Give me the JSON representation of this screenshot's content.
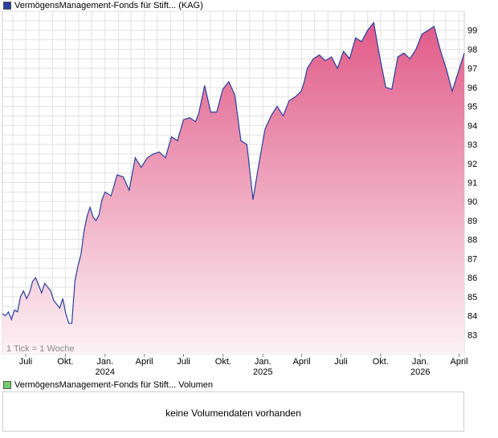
{
  "legend": {
    "price_series": "VermögensManagement-Fonds für Stift... (KAG)",
    "price_color": "#2a3f9d",
    "volume_series": "VermögensManagement-Fonds für Stift... Volumen",
    "volume_color": "#6fcf6f"
  },
  "tick_note": "1 Tick = 1 Woche",
  "volume_message": "keine Volumendaten vorhanden",
  "chart_data": {
    "type": "area",
    "ylim": [
      82,
      100
    ],
    "y_ticks": [
      83,
      84,
      85,
      86,
      87,
      88,
      89,
      90,
      91,
      92,
      93,
      94,
      95,
      96,
      97,
      98,
      99
    ],
    "x_month_labels": [
      "Juli",
      "Okt.",
      "Jan.",
      "April",
      "Juli",
      "Okt.",
      "Jan.",
      "April",
      "Juli",
      "Okt.",
      "Jan.",
      "April"
    ],
    "x_year_labels": [
      {
        "label": "2024",
        "under": 2
      },
      {
        "label": "2025",
        "under": 6
      },
      {
        "label": "2026",
        "under": 10
      }
    ],
    "grid": true,
    "line_color": "#2a3f9d",
    "fill_top_color": "#e05a88",
    "fill_bottom_color": "#fdf2f6",
    "series": [
      {
        "x": [
          "2023-05-08",
          "2023-05-15",
          "2023-05-22",
          "2023-05-29",
          "2023-06-05",
          "2023-06-12",
          "2023-06-19",
          "2023-06-26",
          "2023-07-03",
          "2023-07-10",
          "2023-07-17",
          "2023-07-24",
          "2023-07-31",
          "2023-08-07",
          "2023-08-14",
          "2023-08-21",
          "2023-08-28",
          "2023-09-04",
          "2023-09-11",
          "2023-09-18",
          "2023-09-25",
          "2023-10-02",
          "2023-10-09",
          "2023-10-16",
          "2023-10-23",
          "2023-10-30",
          "2023-11-06",
          "2023-11-13",
          "2023-11-20",
          "2023-11-27",
          "2023-12-04",
          "2023-12-11",
          "2023-12-18",
          "2023-12-25",
          "2024-01-01",
          "2024-01-15",
          "2024-01-29",
          "2024-02-12",
          "2024-02-26",
          "2024-03-11",
          "2024-03-25",
          "2024-04-08",
          "2024-04-22",
          "2024-05-06",
          "2024-05-20",
          "2024-06-03",
          "2024-06-17",
          "2024-07-01",
          "2024-07-15",
          "2024-07-29",
          "2024-08-05",
          "2024-08-19",
          "2024-09-02",
          "2024-09-16",
          "2024-09-30",
          "2024-10-14",
          "2024-10-28",
          "2024-11-11",
          "2024-11-25",
          "2024-12-09",
          "2024-12-23",
          "2025-01-06",
          "2025-01-20",
          "2025-02-03",
          "2025-02-17",
          "2025-03-03",
          "2025-03-17",
          "2025-03-31",
          "2025-04-07",
          "2025-04-14",
          "2025-04-28",
          "2025-05-12",
          "2025-05-26",
          "2025-06-09",
          "2025-06-23",
          "2025-07-07",
          "2025-07-21",
          "2025-08-04",
          "2025-08-18",
          "2025-09-01",
          "2025-09-15",
          "2025-09-29",
          "2025-10-13",
          "2025-10-27",
          "2025-11-10",
          "2025-11-24",
          "2025-12-08",
          "2025-12-22",
          "2026-01-05",
          "2026-01-19",
          "2026-02-02",
          "2026-02-16",
          "2026-03-02",
          "2026-03-16",
          "2026-03-30",
          "2026-04-13"
        ],
        "values": [
          84.1,
          84.0,
          84.2,
          83.8,
          84.3,
          84.2,
          85.0,
          85.3,
          84.9,
          85.2,
          85.8,
          86.0,
          85.6,
          85.2,
          85.7,
          85.5,
          85.3,
          84.8,
          84.6,
          84.4,
          84.9,
          84.1,
          83.6,
          83.6,
          85.8,
          86.6,
          87.2,
          88.4,
          89.2,
          89.7,
          89.2,
          89.0,
          89.3,
          90.1,
          90.5,
          90.3,
          91.4,
          91.3,
          90.6,
          92.3,
          91.8,
          92.3,
          92.5,
          92.6,
          92.3,
          93.4,
          93.2,
          94.3,
          94.4,
          94.2,
          94.6,
          96.1,
          94.7,
          94.7,
          95.9,
          96.3,
          95.6,
          93.2,
          93.0,
          90.1,
          92.0,
          93.8,
          94.5,
          95.0,
          94.5,
          95.3,
          95.5,
          95.8,
          96.3,
          97.0,
          97.5,
          97.7,
          97.4,
          97.6,
          97.0,
          97.9,
          97.5,
          98.6,
          98.4,
          99.0,
          99.4,
          97.6,
          96.0,
          95.9,
          97.6,
          97.8,
          97.5,
          98.0,
          98.8,
          99.0,
          99.2,
          98.0,
          97.0,
          95.8,
          96.8,
          97.8
        ]
      }
    ]
  }
}
